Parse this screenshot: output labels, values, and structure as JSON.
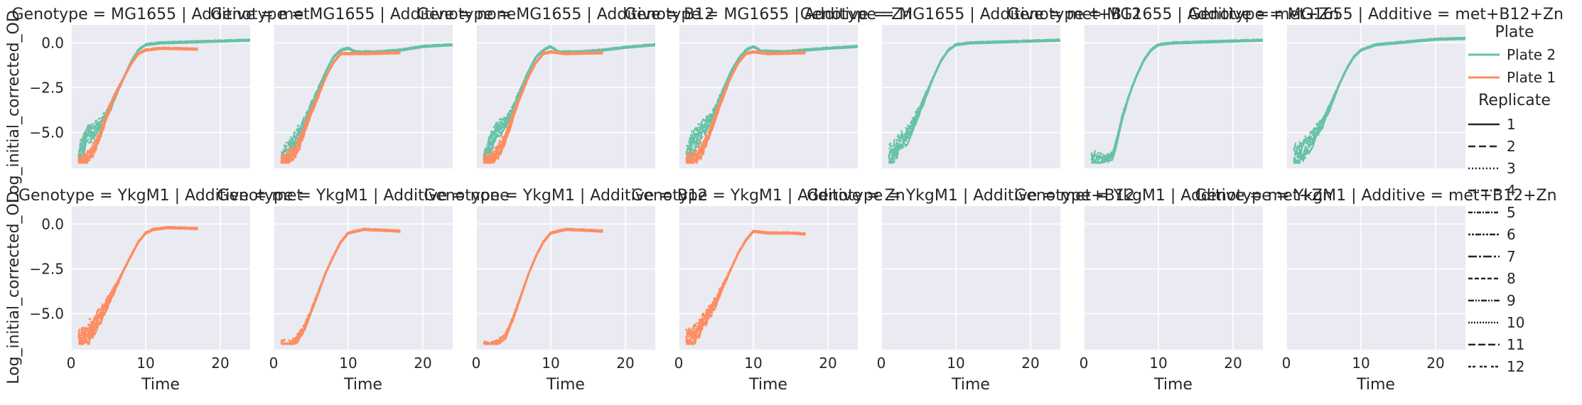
{
  "chart_data": {
    "type": "line",
    "layout": "facet grid, 2 rows by 7 columns, shared axes",
    "x_label": "Time",
    "y_label": "Log_initial_corrected_OD",
    "x_range": [
      0,
      24
    ],
    "y_range": [
      -7,
      1
    ],
    "x_ticks": [
      0,
      10,
      20
    ],
    "x_tick_labels": [
      "0",
      "10",
      "20"
    ],
    "y_ticks": [
      0,
      -2.5,
      -5
    ],
    "y_tick_labels": [
      "0.0",
      "−2.5",
      "−5.0"
    ],
    "grid": true,
    "colors": {
      "Plate 2": "#66c2a5",
      "Plate 1": "#fc8d62",
      "panel_bg": "#eaeaf2"
    },
    "legend": {
      "placement": "right",
      "plate_title": "Plate",
      "plate_entries": [
        {
          "label": "Plate 2",
          "color": "#66c2a5"
        },
        {
          "label": "Plate 1",
          "color": "#fc8d62"
        }
      ],
      "replicate_title": "Replicate",
      "replicate_entries": [
        "1",
        "2",
        "3",
        "4",
        "5",
        "6",
        "7",
        "8",
        "9",
        "10",
        "11",
        "12"
      ]
    },
    "panels": [
      {
        "title": "Genotype = MG1655 | Additive = met",
        "row": 0,
        "col": 0,
        "series": [
          {
            "plate": "Plate 2",
            "points": [
              [
                1,
                -6.6
              ],
              [
                2,
                -5.2
              ],
              [
                3,
                -5.0
              ],
              [
                4,
                -4.5
              ],
              [
                5,
                -3.8
              ],
              [
                6,
                -2.9
              ],
              [
                7,
                -2.0
              ],
              [
                8,
                -1.1
              ],
              [
                9,
                -0.4
              ],
              [
                10,
                -0.1
              ],
              [
                12,
                0.0
              ],
              [
                16,
                0.05
              ],
              [
                20,
                0.1
              ],
              [
                24,
                0.15
              ]
            ],
            "spread": 0.9
          },
          {
            "plate": "Plate 1",
            "points": [
              [
                1,
                -6.8
              ],
              [
                2,
                -6.5
              ],
              [
                3,
                -6.0
              ],
              [
                4,
                -5.0
              ],
              [
                5,
                -3.8
              ],
              [
                6,
                -2.8
              ],
              [
                7,
                -2.0
              ],
              [
                8,
                -1.2
              ],
              [
                9,
                -0.6
              ],
              [
                10,
                -0.4
              ],
              [
                12,
                -0.3
              ],
              [
                17,
                -0.35
              ]
            ],
            "spread": 0.6
          }
        ]
      },
      {
        "title": "Genotype = MG1655 | Additive = none",
        "row": 0,
        "col": 1,
        "series": [
          {
            "plate": "Plate 2",
            "points": [
              [
                1,
                -6.7
              ],
              [
                2,
                -6.0
              ],
              [
                3,
                -5.4
              ],
              [
                4,
                -4.6
              ],
              [
                5,
                -3.6
              ],
              [
                6,
                -2.6
              ],
              [
                7,
                -1.6
              ],
              [
                8,
                -0.8
              ],
              [
                9,
                -0.4
              ],
              [
                10,
                -0.3
              ],
              [
                11,
                -0.5
              ],
              [
                14,
                -0.5
              ],
              [
                17,
                -0.4
              ],
              [
                20,
                -0.2
              ],
              [
                24,
                -0.1
              ]
            ],
            "spread": 0.9
          },
          {
            "plate": "Plate 1",
            "points": [
              [
                1,
                -6.8
              ],
              [
                2,
                -6.5
              ],
              [
                3,
                -6.0
              ],
              [
                4,
                -5.0
              ],
              [
                5,
                -3.9
              ],
              [
                6,
                -2.9
              ],
              [
                7,
                -1.9
              ],
              [
                8,
                -1.1
              ],
              [
                9,
                -0.6
              ],
              [
                10,
                -0.6
              ],
              [
                12,
                -0.6
              ],
              [
                17,
                -0.55
              ]
            ],
            "spread": 0.7
          }
        ]
      },
      {
        "title": "Genotype = MG1655 | Additive = B12",
        "row": 0,
        "col": 2,
        "series": [
          {
            "plate": "Plate 2",
            "points": [
              [
                1,
                -6.6
              ],
              [
                2,
                -5.5
              ],
              [
                3,
                -4.8
              ],
              [
                4,
                -4.4
              ],
              [
                5,
                -3.7
              ],
              [
                6,
                -2.6
              ],
              [
                7,
                -1.6
              ],
              [
                8,
                -0.8
              ],
              [
                9,
                -0.4
              ],
              [
                10,
                -0.2
              ],
              [
                11,
                -0.5
              ],
              [
                14,
                -0.5
              ],
              [
                17,
                -0.4
              ],
              [
                20,
                -0.25
              ],
              [
                24,
                -0.1
              ]
            ],
            "spread": 0.9
          },
          {
            "plate": "Plate 1",
            "points": [
              [
                1,
                -6.8
              ],
              [
                2,
                -6.5
              ],
              [
                3,
                -6.0
              ],
              [
                4,
                -5.2
              ],
              [
                5,
                -4.0
              ],
              [
                6,
                -2.9
              ],
              [
                7,
                -1.9
              ],
              [
                8,
                -1.1
              ],
              [
                9,
                -0.6
              ],
              [
                10,
                -0.5
              ],
              [
                12,
                -0.6
              ],
              [
                17,
                -0.55
              ]
            ],
            "spread": 0.7
          }
        ]
      },
      {
        "title": "Genotype = MG1655 | Additive = Zn",
        "row": 0,
        "col": 3,
        "series": [
          {
            "plate": "Plate 2",
            "points": [
              [
                1,
                -6.6
              ],
              [
                2,
                -5.4
              ],
              [
                3,
                -4.9
              ],
              [
                4,
                -4.4
              ],
              [
                5,
                -3.7
              ],
              [
                6,
                -2.6
              ],
              [
                7,
                -1.6
              ],
              [
                8,
                -0.9
              ],
              [
                9,
                -0.4
              ],
              [
                10,
                -0.2
              ],
              [
                11,
                -0.45
              ],
              [
                14,
                -0.5
              ],
              [
                17,
                -0.4
              ],
              [
                20,
                -0.3
              ],
              [
                24,
                -0.2
              ]
            ],
            "spread": 0.9
          },
          {
            "plate": "Plate 1",
            "points": [
              [
                1,
                -6.8
              ],
              [
                2,
                -6.5
              ],
              [
                3,
                -6.0
              ],
              [
                4,
                -5.2
              ],
              [
                5,
                -4.0
              ],
              [
                6,
                -2.9
              ],
              [
                7,
                -1.9
              ],
              [
                8,
                -1.1
              ],
              [
                9,
                -0.6
              ],
              [
                10,
                -0.5
              ],
              [
                12,
                -0.6
              ],
              [
                17,
                -0.55
              ]
            ],
            "spread": 0.7
          }
        ]
      },
      {
        "title": "Genotype = MG1655 | Additive = met+B12",
        "row": 0,
        "col": 4,
        "series": [
          {
            "plate": "Plate 2",
            "points": [
              [
                1,
                -6.6
              ],
              [
                2,
                -6.0
              ],
              [
                3,
                -5.4
              ],
              [
                4,
                -4.8
              ],
              [
                5,
                -3.9
              ],
              [
                6,
                -2.9
              ],
              [
                7,
                -1.9
              ],
              [
                8,
                -1.0
              ],
              [
                9,
                -0.4
              ],
              [
                10,
                -0.1
              ],
              [
                12,
                0.0
              ],
              [
                16,
                0.05
              ],
              [
                20,
                0.1
              ],
              [
                24,
                0.15
              ]
            ],
            "spread": 1.0
          }
        ]
      },
      {
        "title": "Genotype = MG1655 | Additive = met+Zn",
        "row": 0,
        "col": 5,
        "series": [
          {
            "plate": "Plate 2",
            "points": [
              [
                1,
                -6.5
              ],
              [
                2,
                -6.5
              ],
              [
                3,
                -6.5
              ],
              [
                4,
                -6.2
              ],
              [
                5,
                -4.4
              ],
              [
                6,
                -3.0
              ],
              [
                7,
                -1.9
              ],
              [
                8,
                -1.0
              ],
              [
                9,
                -0.4
              ],
              [
                10,
                -0.1
              ],
              [
                12,
                0.0
              ],
              [
                16,
                0.05
              ],
              [
                20,
                0.1
              ],
              [
                24,
                0.15
              ]
            ],
            "spread": 0.5
          }
        ]
      },
      {
        "title": "Genotype = MG1655 | Additive = met+B12+Zn",
        "row": 0,
        "col": 6,
        "series": [
          {
            "plate": "Plate 2",
            "points": [
              [
                1,
                -6.6
              ],
              [
                2,
                -6.0
              ],
              [
                3,
                -5.6
              ],
              [
                4,
                -5.0
              ],
              [
                5,
                -4.3
              ],
              [
                6,
                -3.4
              ],
              [
                7,
                -2.4
              ],
              [
                8,
                -1.5
              ],
              [
                9,
                -0.8
              ],
              [
                10,
                -0.4
              ],
              [
                12,
                -0.1
              ],
              [
                16,
                0.05
              ],
              [
                20,
                0.2
              ],
              [
                24,
                0.25
              ]
            ],
            "spread": 1.0
          }
        ]
      },
      {
        "title": "Genotype = YkgM1 | Additive = met",
        "row": 1,
        "col": 0,
        "series": [
          {
            "plate": "Plate 1",
            "points": [
              [
                1,
                -6.7
              ],
              [
                2,
                -6.3
              ],
              [
                3,
                -5.7
              ],
              [
                4,
                -5.1
              ],
              [
                5,
                -4.3
              ],
              [
                6,
                -3.5
              ],
              [
                7,
                -2.6
              ],
              [
                8,
                -1.8
              ],
              [
                9,
                -1.0
              ],
              [
                10,
                -0.5
              ],
              [
                11,
                -0.3
              ],
              [
                13,
                -0.2
              ],
              [
                17,
                -0.25
              ]
            ],
            "spread": 1.0
          }
        ]
      },
      {
        "title": "Genotype = YkgM1 | Additive = none",
        "row": 1,
        "col": 1,
        "series": [
          {
            "plate": "Plate 1",
            "points": [
              [
                1,
                -6.8
              ],
              [
                2,
                -6.8
              ],
              [
                3,
                -6.5
              ],
              [
                4,
                -5.9
              ],
              [
                5,
                -4.9
              ],
              [
                6,
                -3.8
              ],
              [
                7,
                -2.7
              ],
              [
                8,
                -1.8
              ],
              [
                9,
                -1.0
              ],
              [
                10,
                -0.5
              ],
              [
                12,
                -0.3
              ],
              [
                15,
                -0.35
              ],
              [
                17,
                -0.4
              ]
            ],
            "spread": 0.4
          }
        ]
      },
      {
        "title": "Genotype = YkgM1 | Additive = B12",
        "row": 1,
        "col": 2,
        "series": [
          {
            "plate": "Plate 1",
            "points": [
              [
                1,
                -6.8
              ],
              [
                2,
                -6.8
              ],
              [
                3,
                -6.6
              ],
              [
                4,
                -6.2
              ],
              [
                5,
                -5.2
              ],
              [
                6,
                -4.0
              ],
              [
                7,
                -2.8
              ],
              [
                8,
                -1.8
              ],
              [
                9,
                -1.0
              ],
              [
                10,
                -0.5
              ],
              [
                12,
                -0.3
              ],
              [
                15,
                -0.35
              ],
              [
                17,
                -0.4
              ]
            ],
            "spread": 0.3
          }
        ]
      },
      {
        "title": "Genotype = YkgM1 | Additive = Zn",
        "row": 1,
        "col": 3,
        "series": [
          {
            "plate": "Plate 1",
            "points": [
              [
                1,
                -6.6
              ],
              [
                2,
                -6.3
              ],
              [
                3,
                -5.6
              ],
              [
                4,
                -5.0
              ],
              [
                5,
                -4.3
              ],
              [
                6,
                -3.4
              ],
              [
                7,
                -2.5
              ],
              [
                8,
                -1.6
              ],
              [
                9,
                -0.9
              ],
              [
                10,
                -0.4
              ],
              [
                12,
                -0.5
              ],
              [
                15,
                -0.5
              ],
              [
                17,
                -0.55
              ]
            ],
            "spread": 0.9
          }
        ]
      },
      {
        "title": "Genotype = YkgM1 | Additive = met+B12",
        "row": 1,
        "col": 4,
        "series": []
      },
      {
        "title": "Genotype = YkgM1 | Additive = met+Zn",
        "row": 1,
        "col": 5,
        "series": []
      },
      {
        "title": "Genotype = YkgM1 | Additive = met+B12+Zn",
        "row": 1,
        "col": 6,
        "series": []
      }
    ]
  }
}
